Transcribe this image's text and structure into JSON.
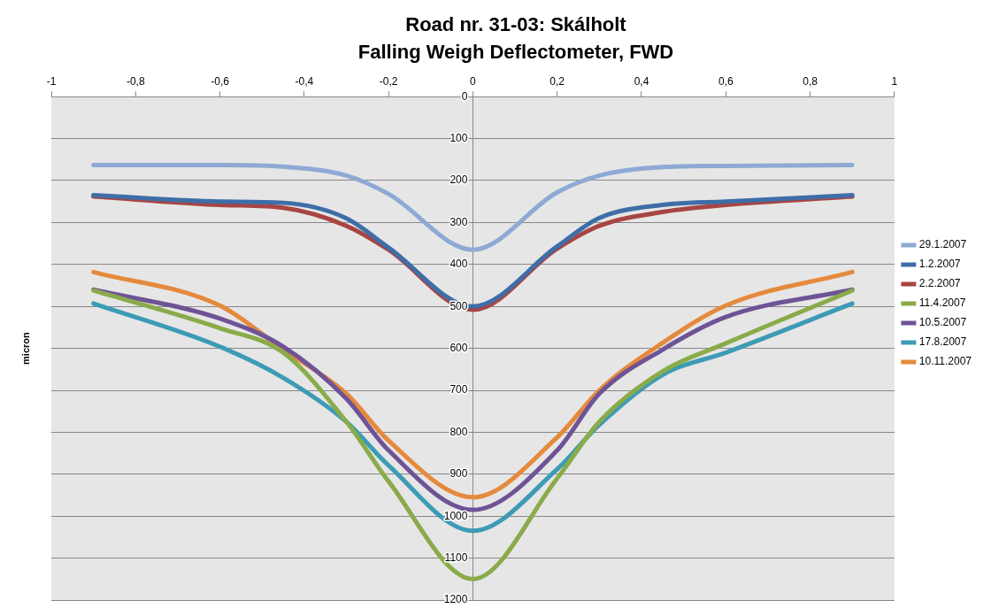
{
  "chart_data": {
    "type": "line",
    "title": "Road nr. 31-03: Skálholt",
    "subtitle": "Falling Weigh Deflectometer, FWD",
    "ylabel": "micron",
    "x": [
      -0.9,
      -0.6,
      -0.45,
      -0.3,
      -0.2,
      0,
      0.2,
      0.3,
      0.45,
      0.6,
      0.9
    ],
    "series": [
      {
        "name": "29.1.2007",
        "color": "#8ea9d4",
        "values": [
          163,
          163,
          167,
          188,
          232,
          365,
          228,
          188,
          168,
          165,
          163
        ]
      },
      {
        "name": "1.2.2007",
        "color": "#3e6ea8",
        "values": [
          235,
          250,
          253,
          290,
          360,
          500,
          357,
          289,
          258,
          250,
          235
        ]
      },
      {
        "name": "2.2.2007",
        "color": "#a84543",
        "values": [
          238,
          258,
          265,
          308,
          365,
          508,
          362,
          308,
          275,
          258,
          238
        ]
      },
      {
        "name": "11.4.2007",
        "color": "#8aab4a",
        "values": [
          462,
          552,
          610,
          775,
          917,
          1150,
          910,
          775,
          655,
          588,
          462
        ]
      },
      {
        "name": "10.5.2007",
        "color": "#6e5396",
        "values": [
          460,
          529,
          596,
          720,
          843,
          985,
          843,
          708,
          603,
          525,
          460
        ]
      },
      {
        "name": "17.8.2007",
        "color": "#3d9bb5",
        "values": [
          493,
          596,
          670,
          775,
          879,
          1035,
          888,
          782,
          663,
          610,
          493
        ]
      },
      {
        "name": "10.11.2007",
        "color": "#e58a3c",
        "values": [
          418,
          498,
          603,
          708,
          820,
          955,
          812,
          700,
          587,
          498,
          418
        ]
      }
    ],
    "xlim": [
      -1,
      1
    ],
    "xticks": [
      {
        "value": -1,
        "label": "-1"
      },
      {
        "value": -0.8,
        "label": "-0,8"
      },
      {
        "value": -0.6,
        "label": "-0,6"
      },
      {
        "value": -0.4,
        "label": "-0,4"
      },
      {
        "value": -0.2,
        "label": "-0,2"
      },
      {
        "value": 0,
        "label": "0"
      },
      {
        "value": 0.2,
        "label": "0,2"
      },
      {
        "value": 0.4,
        "label": "0,4"
      },
      {
        "value": 0.6,
        "label": "0,6"
      },
      {
        "value": 0.8,
        "label": "0,8"
      },
      {
        "value": 1,
        "label": "1"
      }
    ],
    "ylim": [
      1200,
      0
    ],
    "yticks": [
      0,
      100,
      200,
      300,
      400,
      500,
      600,
      700,
      800,
      900,
      1000,
      1100,
      1200
    ],
    "grid": "y",
    "legend": "right",
    "marker": "none",
    "line_style": "solid"
  }
}
